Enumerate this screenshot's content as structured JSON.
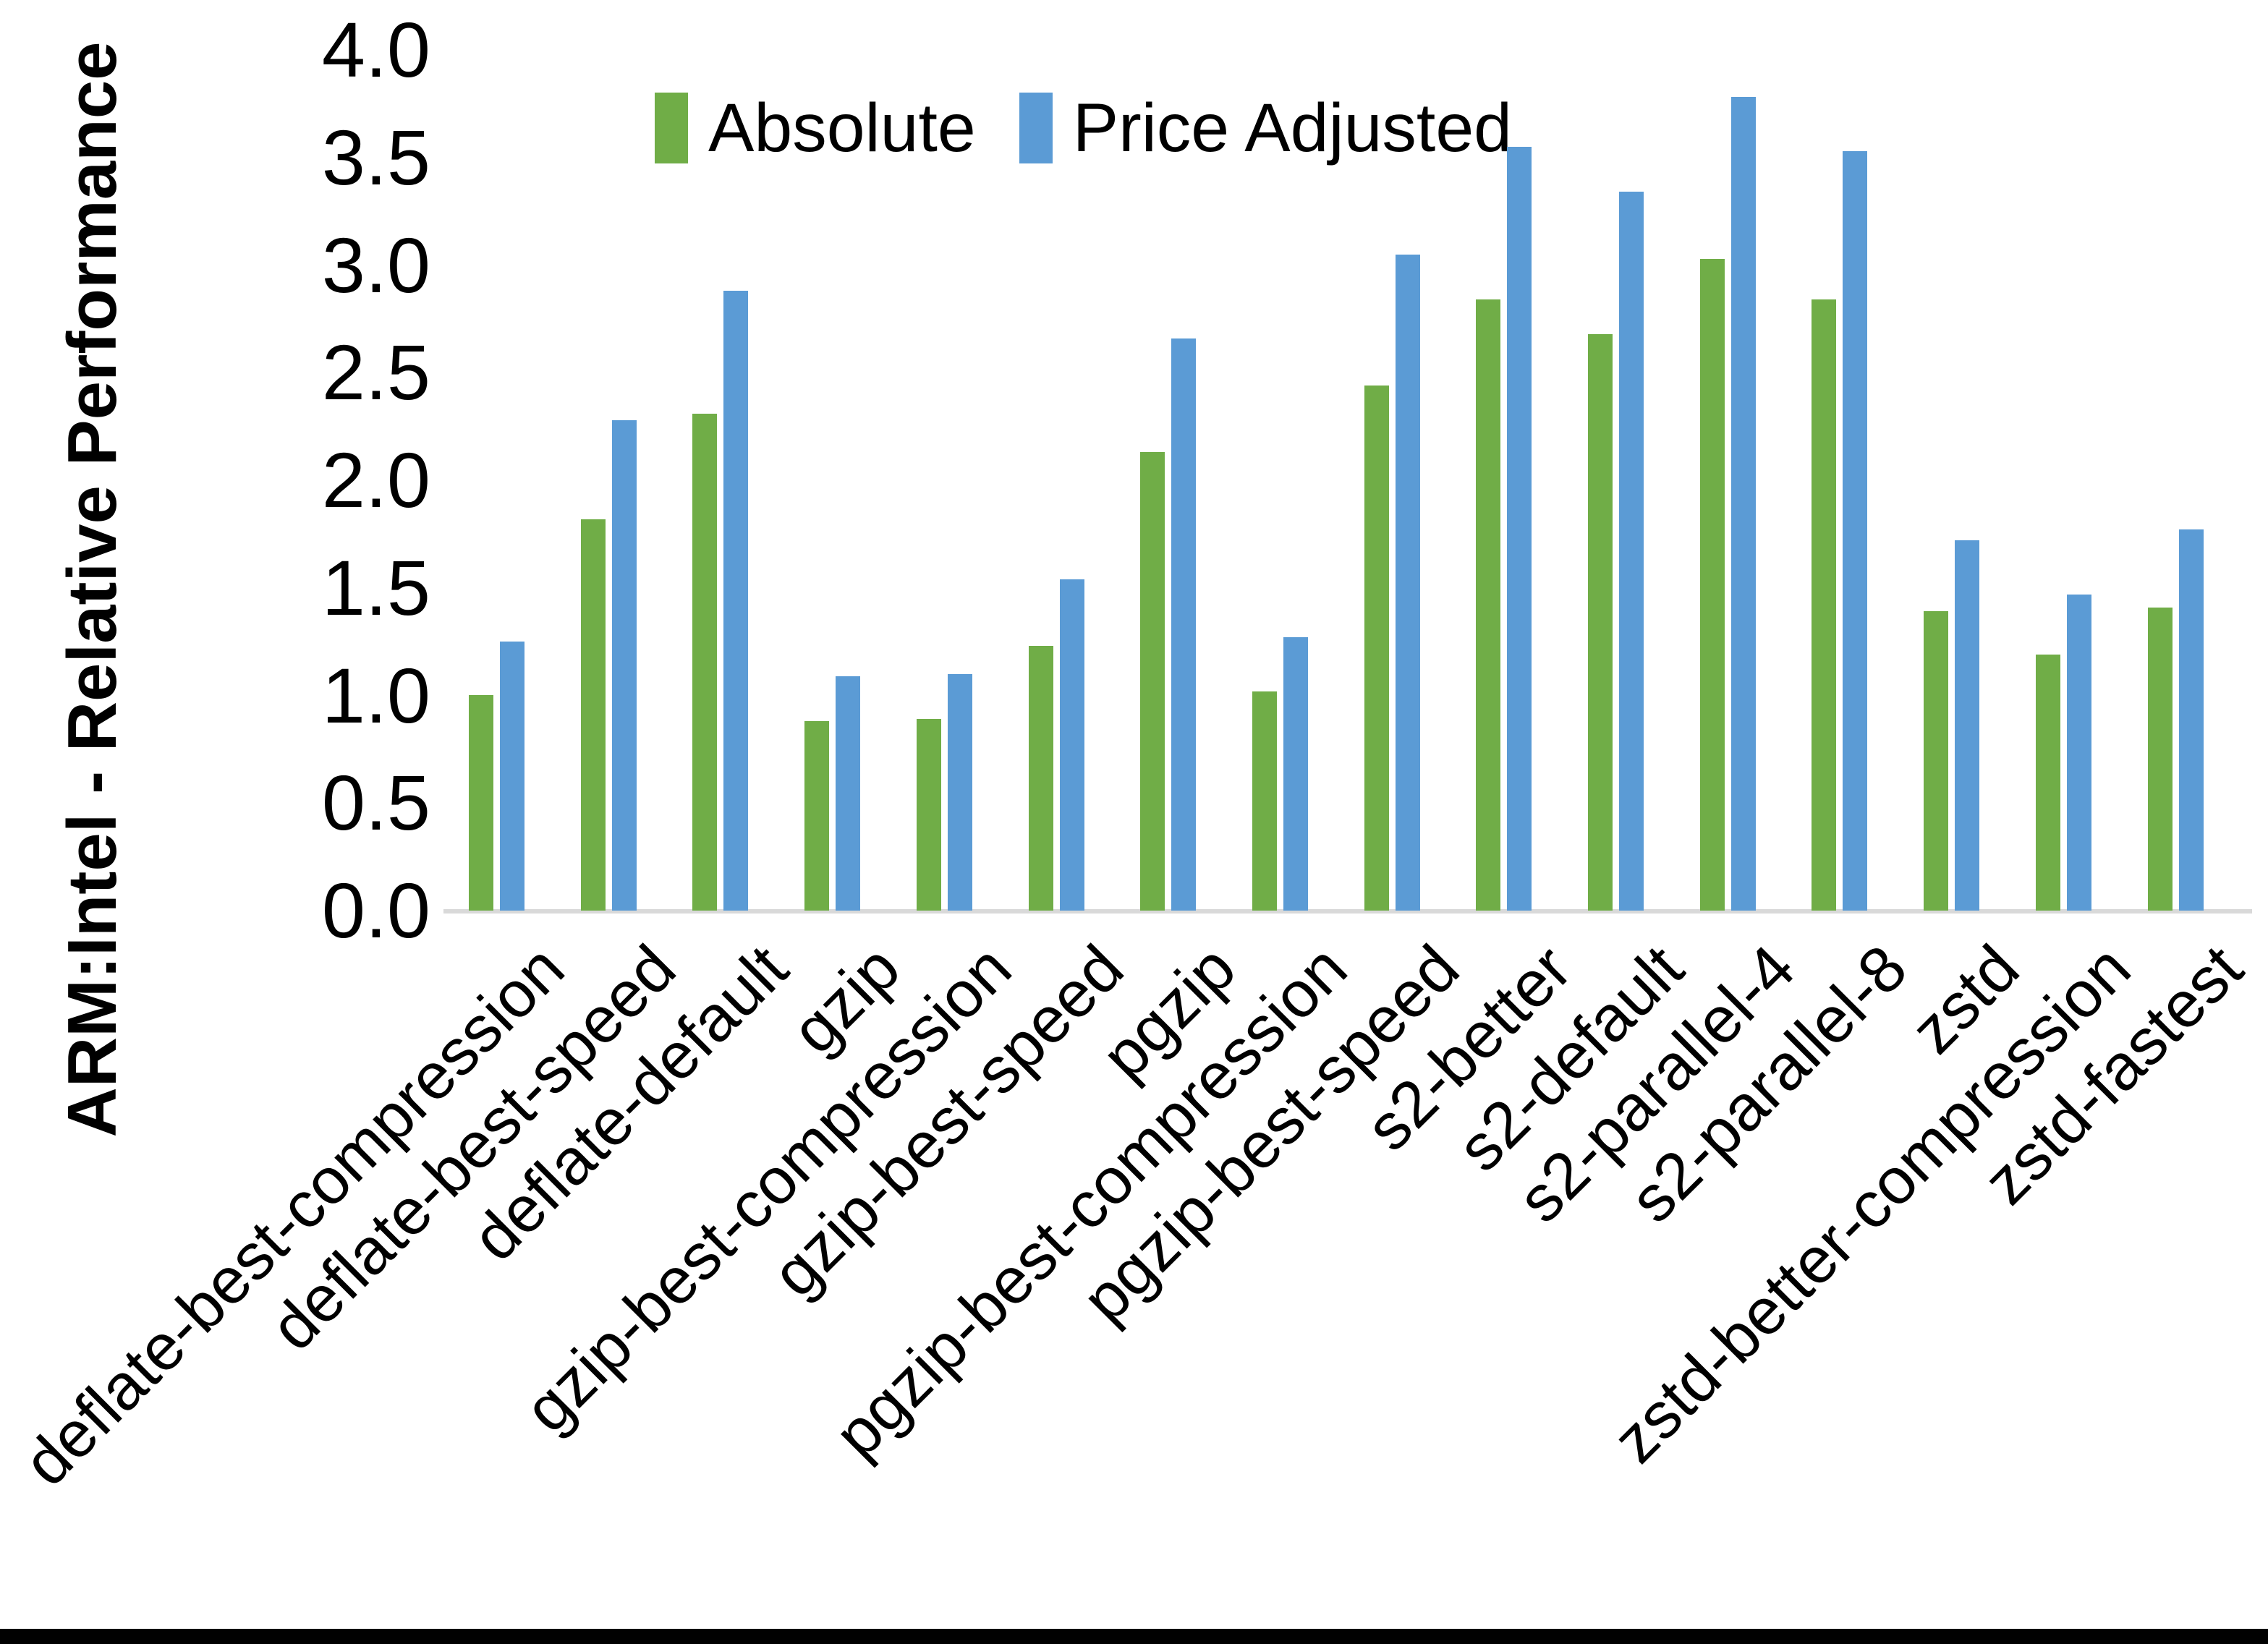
{
  "page": {
    "bottom_bar_color": "#010101",
    "background_color": "#ffffff"
  },
  "chart_data": {
    "type": "bar",
    "title": "",
    "xlabel": "",
    "ylabel": "ARM:Intel - Relative Performance",
    "ylim": [
      0.0,
      4.0
    ],
    "ytick_step": 0.5,
    "yticks": [
      "4.0",
      "3.5",
      "3.0",
      "2.5",
      "2.0",
      "1.5",
      "1.0",
      "0.5",
      "0.0"
    ],
    "grid": false,
    "legend_position": "top-center",
    "axis_line_color": "#d9d9d9",
    "categories": [
      "deflate-best-compression",
      "deflate-best-speed",
      "deflate-default",
      "gzip",
      "gzip-best-compression",
      "gzip-best-speed",
      "pgzip",
      "pgzip-best-compression",
      "pgzip-best-speed",
      "s2-better",
      "s2-default",
      "s2-parallel-4",
      "s2-parallel-8",
      "zstd",
      "zstd-better-compression",
      "zstd-fastest"
    ],
    "series": [
      {
        "name": "Absolute",
        "color": "#70AD47",
        "values": [
          1.0,
          1.82,
          2.31,
          0.88,
          0.89,
          1.23,
          2.13,
          1.02,
          2.44,
          2.84,
          2.68,
          3.03,
          2.84,
          1.39,
          1.19,
          1.41
        ]
      },
      {
        "name": "Price Adjusted",
        "color": "#5B9BD5",
        "values": [
          1.25,
          2.28,
          2.88,
          1.09,
          1.1,
          1.54,
          2.66,
          1.27,
          3.05,
          3.55,
          3.34,
          3.78,
          3.53,
          1.72,
          1.47,
          1.77
        ]
      }
    ]
  }
}
